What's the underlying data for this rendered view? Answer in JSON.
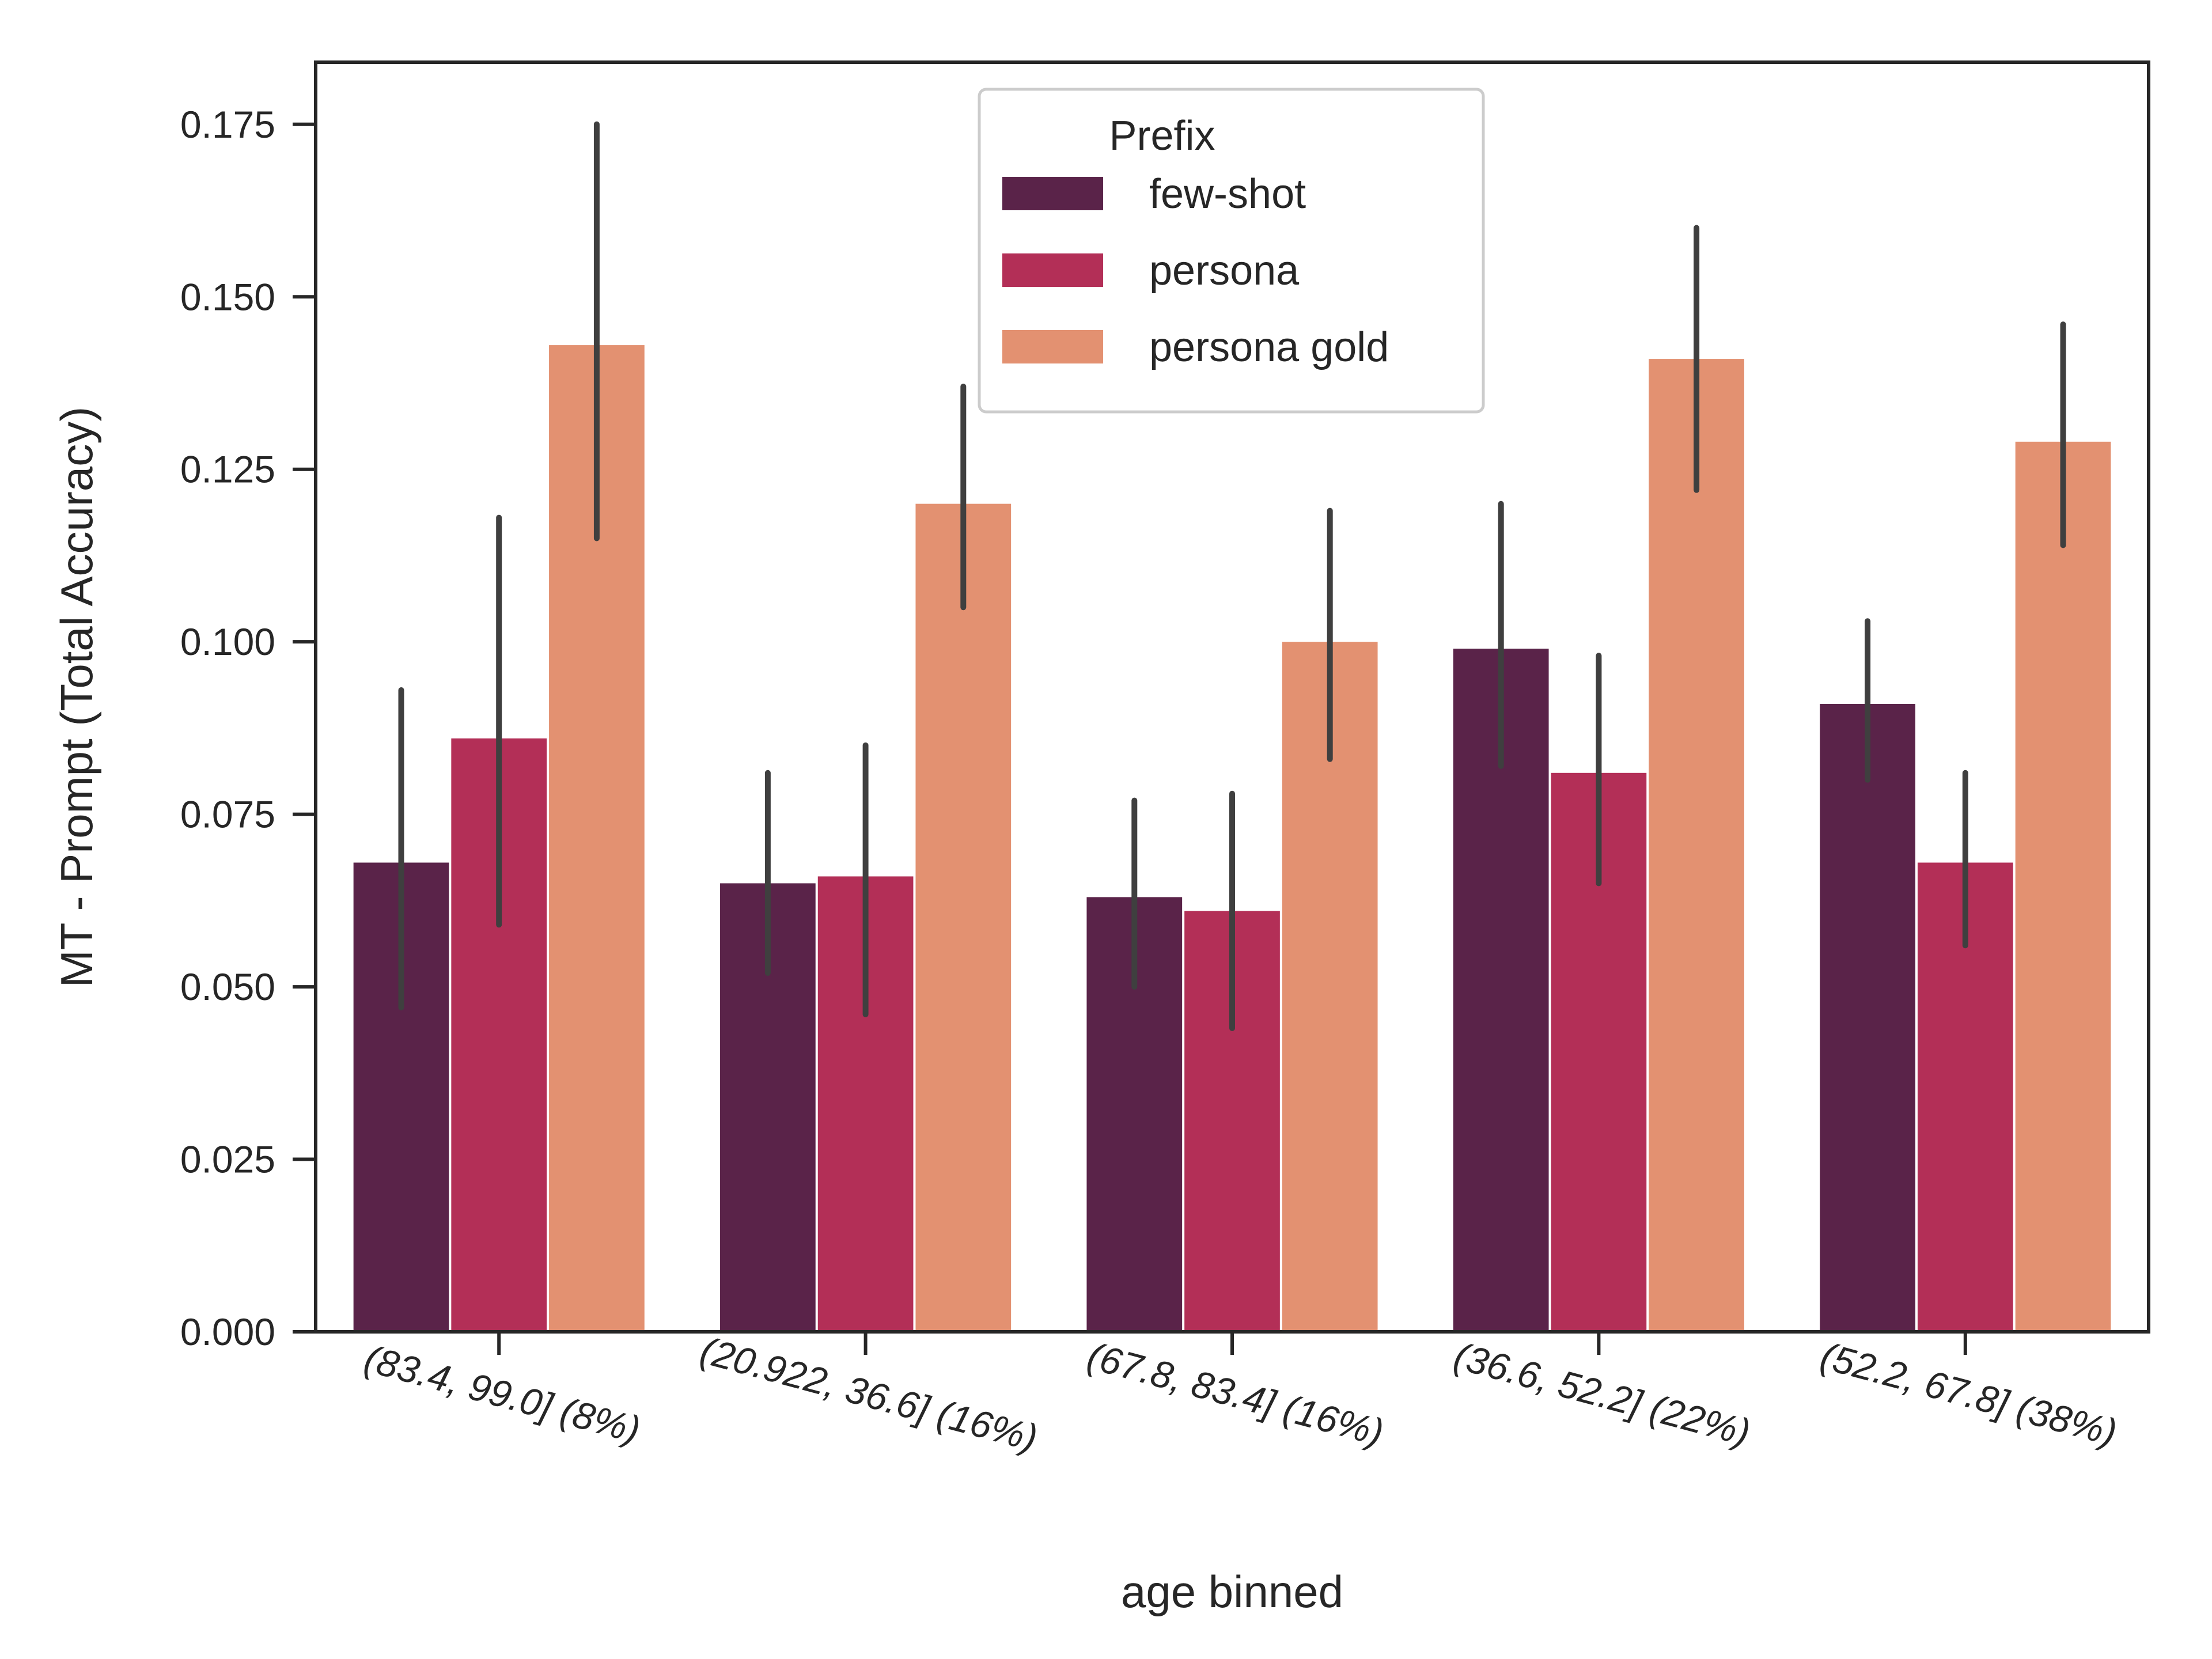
{
  "chart_data": {
    "type": "bar",
    "title": "",
    "xlabel": "age binned",
    "ylabel": "MT - Prompt (Total Accuracy)",
    "ylim": [
      0,
      0.184
    ],
    "yticks": [
      0.0,
      0.025,
      0.05,
      0.075,
      0.1,
      0.125,
      0.15,
      0.175
    ],
    "ytick_labels": [
      "0.000",
      "0.025",
      "0.050",
      "0.075",
      "0.100",
      "0.125",
      "0.150",
      "0.175"
    ],
    "categories": [
      "(83.4, 99.0] (8%)",
      "(20.922, 36.6] (16%)",
      "(67.8, 83.4] (16%)",
      "(36.6, 52.2] (22%)",
      "(52.2, 67.8] (38%)"
    ],
    "legend": {
      "title": "Prefix",
      "placement": "top-center"
    },
    "grid": false,
    "series": [
      {
        "name": "few-shot",
        "color": "#5a2349",
        "values": [
          0.068,
          0.065,
          0.063,
          0.099,
          0.091
        ],
        "ci_low": [
          0.047,
          0.052,
          0.05,
          0.082,
          0.08
        ],
        "ci_high": [
          0.093,
          0.081,
          0.077,
          0.12,
          0.103
        ]
      },
      {
        "name": "persona",
        "color": "#b32f57",
        "values": [
          0.086,
          0.066,
          0.061,
          0.081,
          0.068
        ],
        "ci_low": [
          0.059,
          0.046,
          0.044,
          0.065,
          0.056
        ],
        "ci_high": [
          0.118,
          0.085,
          0.078,
          0.098,
          0.081
        ]
      },
      {
        "name": "persona gold",
        "color": "#e39171",
        "values": [
          0.143,
          0.12,
          0.1,
          0.141,
          0.129
        ],
        "ci_low": [
          0.115,
          0.105,
          0.083,
          0.122,
          0.114
        ],
        "ci_high": [
          0.175,
          0.137,
          0.119,
          0.16,
          0.146
        ]
      }
    ],
    "errorbar_color": "#3f3f3f"
  }
}
